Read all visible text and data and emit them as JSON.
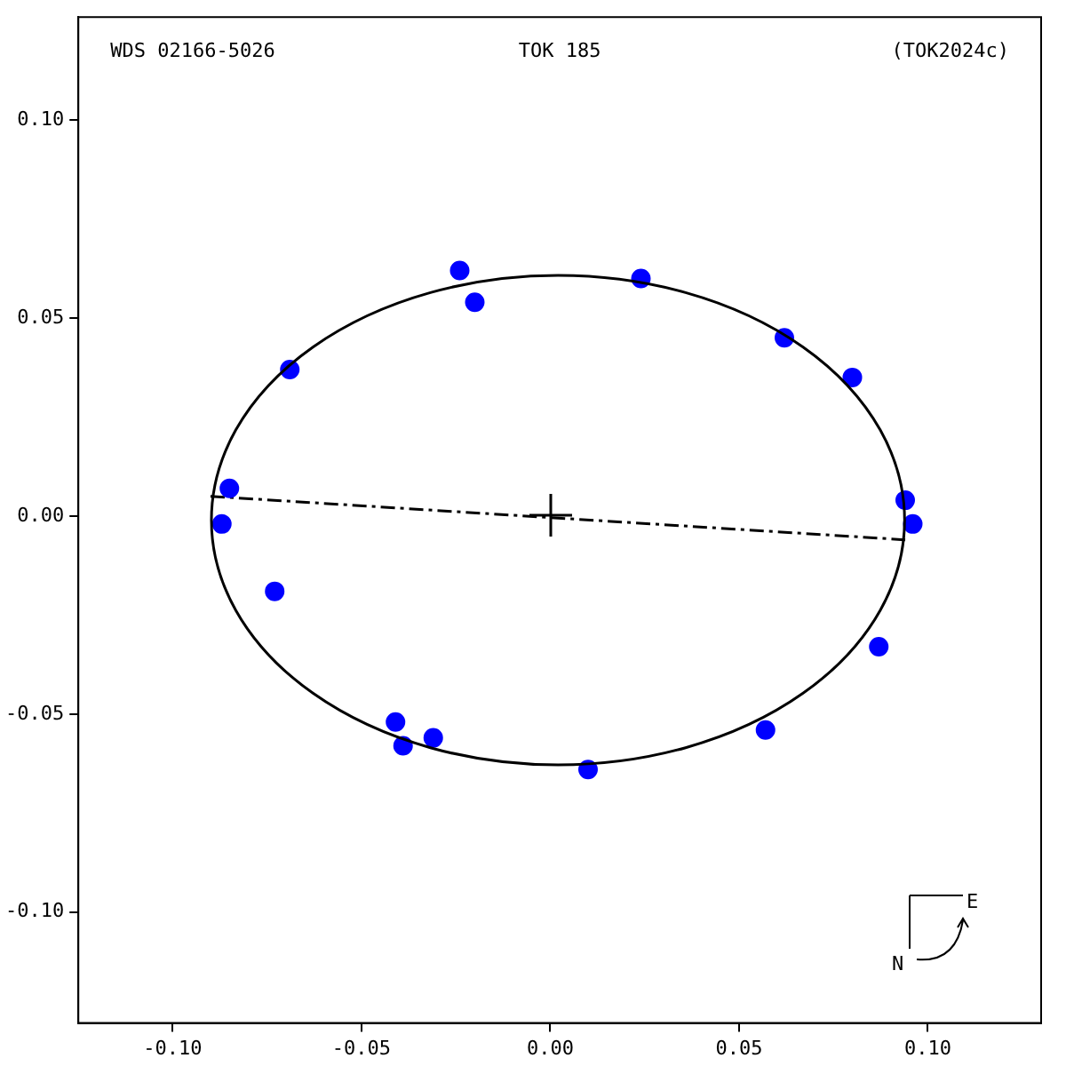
{
  "chart_data": {
    "type": "scatter",
    "title": "TOK 185",
    "annotations": [
      "WDS 02166-5026",
      "(TOK2024c)",
      "E",
      "N"
    ],
    "xlim": [
      -0.125,
      0.13
    ],
    "ylim": [
      -0.128,
      0.126
    ],
    "xticks": [
      {
        "value": -0.1,
        "label": "-0.10"
      },
      {
        "value": -0.05,
        "label": "-0.05"
      },
      {
        "value": 0,
        "label": "0.00"
      },
      {
        "value": 0.05,
        "label": "0.05"
      },
      {
        "value": 0.1,
        "label": "0.10"
      }
    ],
    "yticks": [
      {
        "value": -0.1,
        "label": "-0.10"
      },
      {
        "value": -0.05,
        "label": "-0.05"
      },
      {
        "value": 0,
        "label": "0.00"
      },
      {
        "value": 0.05,
        "label": "0.05"
      },
      {
        "value": 0.1,
        "label": "0.10"
      }
    ],
    "grid": false,
    "legend": false,
    "series": [
      {
        "type": "line",
        "color": "#000000",
        "marker": "none",
        "line_style": "dashed",
        "x": [
          -0.09,
          0.094
        ],
        "values": [
          0.005,
          -0.006
        ]
      },
      {
        "color": "#0000ff",
        "marker": "circle",
        "x": [
          -0.024,
          -0.02,
          0.024,
          0.062,
          0.08,
          -0.069,
          -0.085,
          -0.087,
          0.094,
          0.096,
          -0.073,
          0.087,
          0.057,
          -0.041,
          -0.039,
          -0.031,
          0.01
        ],
        "values": [
          0.062,
          0.054,
          0.06,
          0.045,
          0.035,
          0.037,
          0.007,
          -0.002,
          0.004,
          -0.002,
          -0.019,
          -0.033,
          -0.054,
          -0.052,
          -0.058,
          -0.056,
          -0.064
        ]
      }
    ]
  }
}
